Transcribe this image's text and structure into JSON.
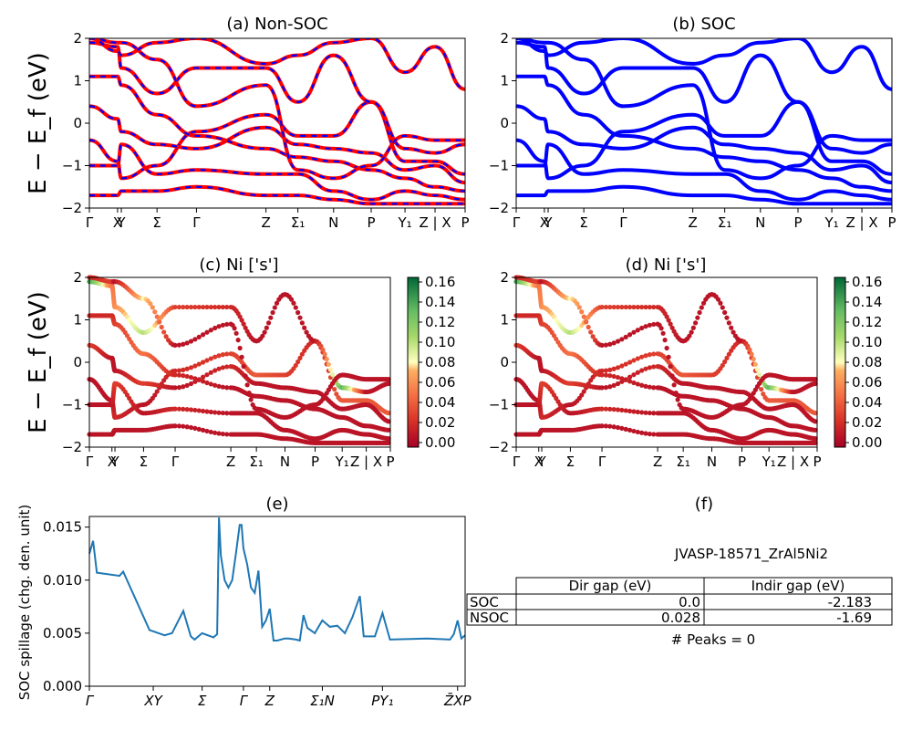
{
  "chart_data": [
    {
      "panel": "a",
      "type": "line",
      "title": "(a) Non-SOC",
      "ylabel": "E − E_f (eV)",
      "ylim": [
        -2,
        2
      ],
      "yticks": [
        "2",
        "1",
        "0",
        "−1",
        "−2"
      ],
      "kpath_labels": [
        "Γ",
        "X",
        "Y",
        "Σ",
        "Γ",
        "Z",
        "Σ₁",
        "N",
        "P",
        "Y₁",
        "Z | X",
        "P"
      ],
      "series": [
        {
          "color": "#ff0000",
          "dashed_overlay_color": "#0000ff",
          "bands": [
            [
              -0.4,
              -0.9,
              -1.3,
              -1.0,
              -0.2,
              0.2,
              -0.3,
              -0.3,
              0.5,
              -0.9,
              -0.9,
              -1.2
            ],
            [
              0.4,
              0.1,
              -0.2,
              -0.5,
              -0.6,
              -0.1,
              -0.5,
              -0.6,
              -0.7,
              -1.1,
              -1.0,
              -1.4
            ],
            [
              1.1,
              1.1,
              0.9,
              0.2,
              -0.3,
              -0.6,
              -0.8,
              -0.9,
              -1.1,
              -1.3,
              -1.5,
              -1.6
            ],
            [
              1.9,
              1.8,
              1.3,
              0.7,
              1.3,
              1.3,
              0.5,
              1.6,
              0.5,
              -0.6,
              -0.7,
              -0.5
            ],
            [
              2.0,
              1.9,
              1.9,
              1.5,
              0.4,
              0.9,
              -1.1,
              -1.3,
              -1.0,
              -0.3,
              -0.4,
              -0.4
            ],
            [
              -1.0,
              -1.0,
              -0.5,
              -1.2,
              -1.1,
              -1.2,
              -1.2,
              -1.6,
              -1.8,
              -1.6,
              -1.7,
              -1.8
            ],
            [
              -1.7,
              -1.7,
              -1.6,
              -1.6,
              -1.5,
              -1.7,
              -1.7,
              -1.8,
              -1.9,
              -1.9,
              -1.9,
              -1.9
            ],
            [
              2.0,
              1.7,
              1.6,
              1.9,
              2.0,
              1.4,
              1.6,
              1.9,
              2.0,
              1.2,
              1.8,
              0.8
            ]
          ]
        }
      ]
    },
    {
      "panel": "b",
      "type": "line",
      "title": "(b) SOC",
      "ylim": [
        -2,
        2
      ],
      "yticks": [
        "2",
        "1",
        "0",
        "−1",
        "−2"
      ],
      "kpath_labels": [
        "Γ",
        "X",
        "Y",
        "Σ",
        "Γ",
        "Z",
        "Σ₁",
        "N",
        "P",
        "Y₁",
        "Z | X",
        "P"
      ],
      "series": [
        {
          "color": "#0000ff",
          "bands": [
            [
              -0.4,
              -0.9,
              -1.3,
              -1.0,
              -0.2,
              0.2,
              -0.3,
              -0.3,
              0.5,
              -0.9,
              -0.9,
              -1.2
            ],
            [
              0.4,
              0.1,
              -0.2,
              -0.5,
              -0.6,
              -0.1,
              -0.5,
              -0.6,
              -0.7,
              -1.1,
              -1.0,
              -1.4
            ],
            [
              1.1,
              1.1,
              0.9,
              0.2,
              -0.3,
              -0.6,
              -0.8,
              -0.9,
              -1.1,
              -1.3,
              -1.5,
              -1.6
            ],
            [
              1.9,
              1.8,
              1.3,
              0.7,
              1.3,
              1.3,
              0.5,
              1.6,
              0.5,
              -0.6,
              -0.7,
              -0.5
            ],
            [
              2.0,
              1.9,
              1.9,
              1.5,
              0.4,
              0.9,
              -1.1,
              -1.3,
              -1.0,
              -0.3,
              -0.4,
              -0.4
            ],
            [
              -1.0,
              -1.0,
              -0.5,
              -1.2,
              -1.1,
              -1.2,
              -1.2,
              -1.6,
              -1.8,
              -1.6,
              -1.7,
              -1.8
            ],
            [
              -1.7,
              -1.7,
              -1.6,
              -1.6,
              -1.5,
              -1.7,
              -1.7,
              -1.8,
              -1.9,
              -1.9,
              -1.9,
              -1.9
            ],
            [
              2.0,
              1.7,
              1.6,
              1.9,
              2.0,
              1.4,
              1.6,
              1.9,
              2.0,
              1.2,
              1.8,
              0.8
            ]
          ]
        }
      ]
    },
    {
      "panel": "c",
      "type": "scatter",
      "title": "(c)  Ni ['s']",
      "ylabel": "E − E_f (eV)",
      "ylim": [
        -2,
        2
      ],
      "yticks": [
        "2",
        "1",
        "0",
        "−1",
        "−2"
      ],
      "kpath_labels": [
        "Γ",
        "X",
        "Y",
        "Σ",
        "Γ",
        "Z",
        "Σ₁",
        "N",
        "P",
        "Y₁",
        "Z | X",
        "P"
      ],
      "colorbar": {
        "range": [
          0.0,
          0.16
        ],
        "ticks": [
          "0.16",
          "0.14",
          "0.12",
          "0.10",
          "0.08",
          "0.06",
          "0.04",
          "0.02",
          "0.00"
        ],
        "colormap": "RdYlGn"
      },
      "bands": [
        [
          -0.4,
          -0.9,
          -1.3,
          -1.0,
          -0.2,
          0.2,
          -0.3,
          -0.3,
          0.5,
          -0.9,
          -0.9,
          -1.2
        ],
        [
          0.4,
          0.1,
          -0.2,
          -0.5,
          -0.6,
          -0.1,
          -0.5,
          -0.6,
          -0.7,
          -1.1,
          -1.0,
          -1.4
        ],
        [
          1.1,
          1.1,
          0.9,
          0.2,
          -0.3,
          -0.6,
          -0.8,
          -0.9,
          -1.1,
          -1.3,
          -1.5,
          -1.6
        ],
        [
          1.9,
          1.8,
          1.3,
          0.7,
          1.3,
          1.3,
          0.5,
          1.6,
          0.5,
          -0.6,
          -0.7,
          -0.5
        ],
        [
          2.0,
          1.9,
          1.9,
          1.5,
          0.4,
          0.9,
          -1.1,
          -1.3,
          -1.0,
          -0.3,
          -0.4,
          -0.4
        ],
        [
          -1.0,
          -1.0,
          -0.5,
          -1.2,
          -1.1,
          -1.2,
          -1.2,
          -1.6,
          -1.8,
          -1.6,
          -1.7,
          -1.8
        ],
        [
          -1.7,
          -1.7,
          -1.6,
          -1.6,
          -1.5,
          -1.7,
          -1.7,
          -1.8,
          -1.9,
          -1.9,
          -1.9,
          -1.9
        ]
      ],
      "weights": [
        [
          0.01,
          0.01,
          0.02,
          0.01,
          0.02,
          0.03,
          0.04,
          0.03,
          0.02,
          0.04,
          0.04,
          0.04
        ],
        [
          0.03,
          0.01,
          0.01,
          0.03,
          0.01,
          0.02,
          0.01,
          0.01,
          0.01,
          0.01,
          0.01,
          0.01
        ],
        [
          0.02,
          0.02,
          0.03,
          0.05,
          0.02,
          0.01,
          0.01,
          0.01,
          0.01,
          0.01,
          0.01,
          0.01
        ],
        [
          0.14,
          0.05,
          0.06,
          0.1,
          0.03,
          0.02,
          0.01,
          0.01,
          0.01,
          0.13,
          0.01,
          0.01
        ],
        [
          0.02,
          0.03,
          0.01,
          0.08,
          0.01,
          0.01,
          0.01,
          0.01,
          0.01,
          0.01,
          0.01,
          0.01
        ],
        [
          0.01,
          0.01,
          0.03,
          0.01,
          0.02,
          0.01,
          0.01,
          0.01,
          0.01,
          0.01,
          0.01,
          0.01
        ],
        [
          0.01,
          0.01,
          0.01,
          0.01,
          0.01,
          0.01,
          0.01,
          0.01,
          0.01,
          0.01,
          0.01,
          0.01
        ]
      ]
    },
    {
      "panel": "d",
      "type": "scatter",
      "title": "(d) Ni ['s']",
      "ylim": [
        -2,
        2
      ],
      "yticks": [
        "2",
        "1",
        "0",
        "−1",
        "−2"
      ],
      "kpath_labels": [
        "Γ",
        "X",
        "Y",
        "Σ",
        "Γ",
        "Z",
        "Σ₁",
        "N",
        "P",
        "Y₁",
        "Z | X",
        "P"
      ],
      "colorbar": {
        "range": [
          0.0,
          0.16
        ],
        "ticks": [
          "0.16",
          "0.14",
          "0.12",
          "0.10",
          "0.08",
          "0.06",
          "0.04",
          "0.02",
          "0.00"
        ],
        "colormap": "RdYlGn"
      },
      "bands": [
        [
          -0.4,
          -0.9,
          -1.3,
          -1.0,
          -0.2,
          0.2,
          -0.3,
          -0.3,
          0.5,
          -0.9,
          -0.9,
          -1.2
        ],
        [
          0.4,
          0.1,
          -0.2,
          -0.5,
          -0.6,
          -0.1,
          -0.5,
          -0.6,
          -0.7,
          -1.1,
          -1.0,
          -1.4
        ],
        [
          1.1,
          1.1,
          0.9,
          0.2,
          -0.3,
          -0.6,
          -0.8,
          -0.9,
          -1.1,
          -1.3,
          -1.5,
          -1.6
        ],
        [
          1.9,
          1.8,
          1.3,
          0.7,
          1.3,
          1.3,
          0.5,
          1.6,
          0.5,
          -0.6,
          -0.7,
          -0.5
        ],
        [
          2.0,
          1.9,
          1.9,
          1.5,
          0.4,
          0.9,
          -1.1,
          -1.3,
          -1.0,
          -0.3,
          -0.4,
          -0.4
        ],
        [
          -1.0,
          -1.0,
          -0.5,
          -1.2,
          -1.1,
          -1.2,
          -1.2,
          -1.6,
          -1.8,
          -1.6,
          -1.7,
          -1.8
        ],
        [
          -1.7,
          -1.7,
          -1.6,
          -1.6,
          -1.5,
          -1.7,
          -1.7,
          -1.8,
          -1.9,
          -1.9,
          -1.9,
          -1.9
        ]
      ],
      "weights": [
        [
          0.01,
          0.01,
          0.02,
          0.01,
          0.02,
          0.03,
          0.04,
          0.03,
          0.02,
          0.04,
          0.04,
          0.04
        ],
        [
          0.03,
          0.01,
          0.01,
          0.03,
          0.01,
          0.02,
          0.01,
          0.01,
          0.01,
          0.01,
          0.01,
          0.01
        ],
        [
          0.02,
          0.02,
          0.03,
          0.05,
          0.02,
          0.01,
          0.01,
          0.01,
          0.01,
          0.01,
          0.01,
          0.01
        ],
        [
          0.14,
          0.05,
          0.06,
          0.1,
          0.03,
          0.02,
          0.01,
          0.01,
          0.01,
          0.13,
          0.01,
          0.01
        ],
        [
          0.02,
          0.03,
          0.01,
          0.08,
          0.01,
          0.01,
          0.01,
          0.01,
          0.01,
          0.01,
          0.01,
          0.01
        ],
        [
          0.01,
          0.01,
          0.03,
          0.01,
          0.02,
          0.01,
          0.01,
          0.01,
          0.01,
          0.01,
          0.01,
          0.01
        ],
        [
          0.01,
          0.01,
          0.01,
          0.01,
          0.01,
          0.01,
          0.01,
          0.01,
          0.01,
          0.01,
          0.01,
          0.01
        ]
      ]
    },
    {
      "panel": "e",
      "type": "line",
      "title": "(e)",
      "ylabel": "SOC spillage (chg. den. unit)",
      "ylim": [
        0.0,
        0.016
      ],
      "yticks": [
        "0.015",
        "0.010",
        "0.005",
        "0.000"
      ],
      "xtick_labels": [
        "Γ",
        "XY",
        "Σ",
        "Γ",
        "Z",
        "Σ₁N",
        "PY₁",
        "Z̄XP"
      ],
      "series": [
        {
          "color": "#1f77b4",
          "x": [
            0,
            0.01,
            0.02,
            0.08,
            0.09,
            0.16,
            0.2,
            0.22,
            0.23,
            0.25,
            0.27,
            0.28,
            0.3,
            0.33,
            0.34,
            0.345,
            0.35,
            0.36,
            0.37,
            0.38,
            0.39,
            0.4,
            0.405,
            0.41,
            0.42,
            0.43,
            0.44,
            0.45,
            0.46,
            0.47,
            0.48,
            0.49,
            0.5,
            0.52,
            0.53,
            0.55,
            0.56,
            0.57,
            0.58,
            0.6,
            0.62,
            0.64,
            0.66,
            0.68,
            0.7,
            0.72,
            0.73,
            0.75,
            0.76,
            0.78,
            0.8,
            0.9,
            0.96,
            0.97,
            0.98,
            0.99,
            1.0
          ],
          "values": [
            0.0125,
            0.0137,
            0.0107,
            0.0104,
            0.0108,
            0.0053,
            0.0048,
            0.005,
            0.0057,
            0.0071,
            0.0047,
            0.0044,
            0.005,
            0.0046,
            0.0049,
            0.0159,
            0.0123,
            0.01,
            0.0093,
            0.01,
            0.0125,
            0.0152,
            0.0152,
            0.013,
            0.0115,
            0.0093,
            0.0088,
            0.0109,
            0.0056,
            0.0062,
            0.0073,
            0.0043,
            0.0043,
            0.0045,
            0.0045,
            0.0044,
            0.0043,
            0.0067,
            0.0055,
            0.005,
            0.0062,
            0.0056,
            0.0057,
            0.005,
            0.0065,
            0.0085,
            0.0047,
            0.0047,
            0.0047,
            0.0069,
            0.0044,
            0.0045,
            0.0044,
            0.0049,
            0.0062,
            0.0045,
            0.0048
          ]
        }
      ]
    }
  ],
  "panel_f": {
    "title": "(f)",
    "material": "JVASP-18571_ZrAl5Ni2",
    "table": {
      "headers": [
        "Dir gap (eV)",
        "Indir gap (eV)"
      ],
      "rows": [
        {
          "label": "SOC",
          "dir": "0.0",
          "indir": "-2.183"
        },
        {
          "label": "NSOC",
          "dir": "0.028",
          "indir": "-1.69"
        }
      ]
    },
    "peaks_text": "# Peaks = 0"
  }
}
